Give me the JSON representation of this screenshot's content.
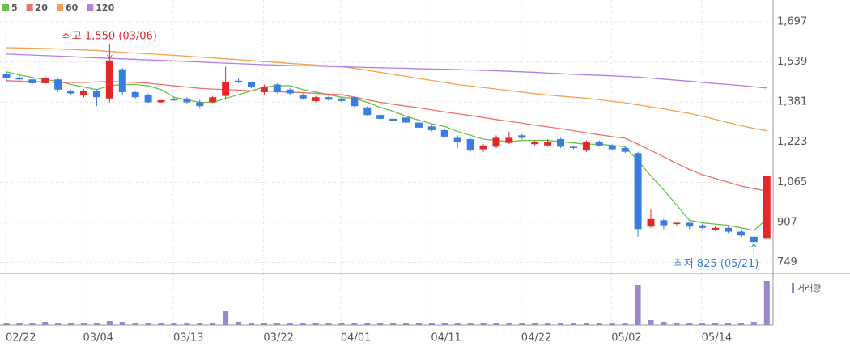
{
  "chart_data": {
    "type": "candlestick",
    "categories": [
      "02/22",
      null,
      null,
      null,
      null,
      null,
      "03/04",
      null,
      null,
      null,
      null,
      null,
      null,
      "03/13",
      null,
      null,
      null,
      null,
      null,
      null,
      "03/22",
      null,
      null,
      null,
      null,
      null,
      "04/01",
      null,
      null,
      null,
      null,
      null,
      null,
      "04/11",
      null,
      null,
      null,
      null,
      null,
      null,
      "04/22",
      null,
      null,
      null,
      null,
      null,
      null,
      "05/02",
      null,
      null,
      null,
      null,
      null,
      null,
      "05/14",
      null,
      null,
      null,
      null,
      null
    ],
    "open": [
      1490,
      1478,
      1470,
      1455,
      1470,
      1425,
      1410,
      1425,
      1395,
      1510,
      1420,
      1410,
      1380,
      1392,
      1395,
      1380,
      1380,
      1405,
      1465,
      1460,
      1420,
      1450,
      1430,
      1410,
      1385,
      1400,
      1395,
      1400,
      1360,
      1330,
      1315,
      1320,
      1300,
      1285,
      1270,
      1240,
      1235,
      1195,
      1205,
      1220,
      1250,
      1215,
      1210,
      1235,
      1205,
      1190,
      1225,
      1210,
      1200,
      1180,
      890,
      915,
      900,
      905,
      895,
      878,
      885,
      870,
      850,
      845
    ],
    "high": [
      1500,
      1490,
      1478,
      1490,
      1475,
      1430,
      1432,
      1430,
      1550,
      1515,
      1425,
      1415,
      1390,
      1398,
      1400,
      1390,
      1405,
      1520,
      1475,
      1462,
      1450,
      1455,
      1435,
      1415,
      1405,
      1410,
      1400,
      1405,
      1365,
      1335,
      1320,
      1325,
      1305,
      1290,
      1275,
      1250,
      1240,
      1215,
      1250,
      1265,
      1255,
      1230,
      1235,
      1240,
      1210,
      1230,
      1230,
      1215,
      1205,
      1185,
      960,
      920,
      910,
      910,
      900,
      890,
      890,
      875,
      855,
      1090
    ],
    "low": [
      1460,
      1460,
      1450,
      1450,
      1420,
      1410,
      1400,
      1365,
      1380,
      1410,
      1395,
      1378,
      1378,
      1385,
      1375,
      1355,
      1378,
      1390,
      1455,
      1435,
      1410,
      1415,
      1410,
      1390,
      1380,
      1385,
      1380,
      1360,
      1325,
      1310,
      1300,
      1255,
      1275,
      1265,
      1240,
      1200,
      1185,
      1185,
      1200,
      1215,
      1235,
      1210,
      1205,
      1200,
      1195,
      1185,
      1205,
      1190,
      1180,
      850,
      885,
      880,
      895,
      880,
      880,
      872,
      865,
      850,
      825,
      840
    ],
    "close": [
      1475,
      1470,
      1455,
      1475,
      1430,
      1415,
      1425,
      1400,
      1545,
      1420,
      1400,
      1380,
      1388,
      1388,
      1380,
      1365,
      1400,
      1460,
      1462,
      1440,
      1440,
      1420,
      1415,
      1395,
      1400,
      1390,
      1385,
      1365,
      1330,
      1315,
      1308,
      1300,
      1280,
      1270,
      1245,
      1225,
      1190,
      1210,
      1240,
      1240,
      1240,
      1225,
      1225,
      1205,
      1200,
      1225,
      1210,
      1195,
      1185,
      880,
      920,
      895,
      905,
      890,
      885,
      885,
      870,
      855,
      830,
      1090
    ],
    "up_color": "#e2282b",
    "down_color": "#3a7de0",
    "series": [
      {
        "name": "5",
        "color": "#6cc04a",
        "values": [
          1500,
          1488,
          1478,
          1470,
          1462,
          1450,
          1440,
          1430,
          1445,
          1450,
          1450,
          1445,
          1430,
          1400,
          1390,
          1380,
          1380,
          1395,
          1410,
          1425,
          1440,
          1445,
          1445,
          1430,
          1420,
          1410,
          1400,
          1395,
          1380,
          1360,
          1345,
          1325,
          1310,
          1295,
          1285,
          1265,
          1250,
          1235,
          1230,
          1225,
          1230,
          1230,
          1230,
          1225,
          1220,
          1215,
          1215,
          1210,
          1205,
          1150,
          1090,
          1035,
          975,
          915,
          905,
          900,
          895,
          885,
          875,
          920
        ]
      },
      {
        "name": "20",
        "color": "#f0706a",
        "values": [
          1465,
          1463,
          1462,
          1460,
          1458,
          1458,
          1458,
          1460,
          1462,
          1460,
          1458,
          1455,
          1450,
          1445,
          1440,
          1435,
          1432,
          1430,
          1428,
          1425,
          1425,
          1422,
          1420,
          1418,
          1415,
          1412,
          1410,
          1400,
          1390,
          1380,
          1372,
          1365,
          1358,
          1350,
          1342,
          1335,
          1328,
          1320,
          1312,
          1305,
          1298,
          1290,
          1283,
          1276,
          1268,
          1260,
          1252,
          1245,
          1238,
          1215,
          1190,
          1165,
          1140,
          1115,
          1095,
          1080,
          1065,
          1050,
          1040,
          1030
        ]
      },
      {
        "name": "60",
        "color": "#f5a050",
        "values": [
          1595,
          1594,
          1593,
          1592,
          1590,
          1588,
          1586,
          1584,
          1580,
          1577,
          1574,
          1571,
          1568,
          1565,
          1562,
          1558,
          1555,
          1551,
          1548,
          1544,
          1540,
          1537,
          1533,
          1530,
          1527,
          1524,
          1520,
          1514,
          1506,
          1498,
          1490,
          1482,
          1474,
          1466,
          1458,
          1450,
          1444,
          1438,
          1432,
          1426,
          1420,
          1414,
          1409,
          1404,
          1400,
          1396,
          1390,
          1384,
          1378,
          1370,
          1362,
          1354,
          1345,
          1336,
          1325,
          1313,
          1300,
          1288,
          1277,
          1268
        ]
      },
      {
        "name": "120",
        "color": "#b07fe0",
        "values": [
          1570,
          1568,
          1566,
          1564,
          1562,
          1560,
          1557,
          1555,
          1553,
          1551,
          1549,
          1547,
          1545,
          1543,
          1541,
          1539,
          1536,
          1534,
          1532,
          1530,
          1528,
          1527,
          1525,
          1524,
          1523,
          1521,
          1520,
          1519,
          1517,
          1516,
          1515,
          1514,
          1512,
          1511,
          1510,
          1509,
          1507,
          1506,
          1504,
          1502,
          1500,
          1498,
          1495,
          1493,
          1490,
          1488,
          1486,
          1484,
          1482,
          1479,
          1475,
          1471,
          1467,
          1463,
          1458,
          1454,
          1450,
          1446,
          1441,
          1436
        ]
      }
    ],
    "volume": {
      "name": "거래량",
      "color": "#9b87c9",
      "values": [
        3,
        3,
        3,
        4,
        3,
        3,
        3,
        3,
        5,
        4,
        3,
        3,
        3,
        3,
        3,
        3,
        3,
        18,
        4,
        3,
        3,
        3,
        3,
        3,
        3,
        3,
        3,
        3,
        3,
        3,
        3,
        3,
        3,
        3,
        3,
        3,
        3,
        3,
        3,
        3,
        3,
        3,
        3,
        3,
        3,
        3,
        3,
        3,
        3,
        49,
        6,
        4,
        3,
        3,
        3,
        3,
        3,
        3,
        4,
        54
      ]
    },
    "annotations": [
      {
        "text": "최고 1,550 (03/06)",
        "color": "#e2282b",
        "value": 1550
      },
      {
        "text": "최저 825 (05/21)",
        "color": "#3a7de0",
        "value": 825
      }
    ],
    "ylim": [
      706,
      1783
    ],
    "yticks": [
      749,
      907,
      {
        "value": 1065,
        "label": "1,065"
      },
      {
        "value": 1223,
        "label": "1,223"
      },
      {
        "value": 1381,
        "label": "1,381"
      },
      {
        "value": 1539,
        "label": "1,539"
      },
      {
        "value": 1697,
        "label": "1,697"
      }
    ],
    "grid": true
  }
}
